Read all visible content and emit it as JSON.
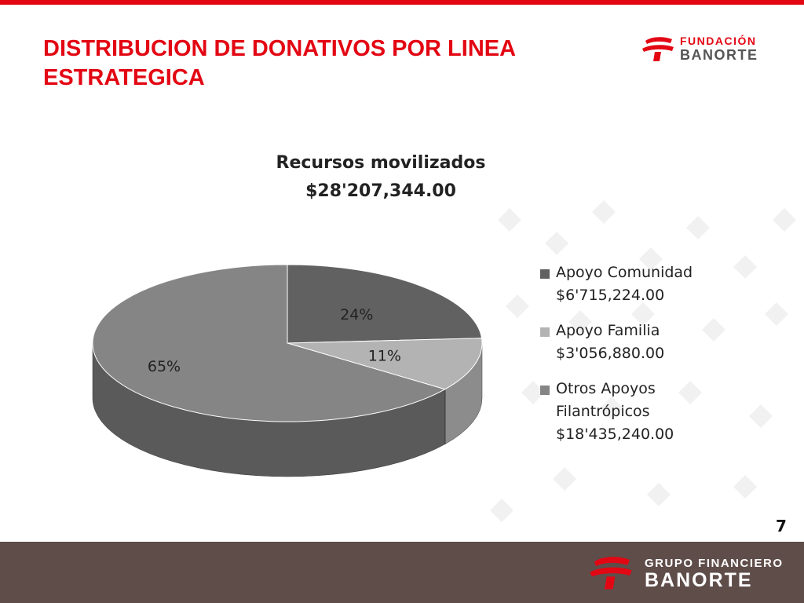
{
  "slide": {
    "title": "DISTRIBUCION DE DONATIVOS POR LINEA ESTRATEGICA",
    "page_number": "7",
    "accent_color": "#e30613",
    "footer_color": "#5f4d4a"
  },
  "top_logo": {
    "line1": "FUNDACIÓN",
    "line2": "BANORTE",
    "icon": "banorte-logo-icon"
  },
  "footer_logo": {
    "line1": "GRUPO FINANCIERO",
    "line2": "BANORTE",
    "icon": "banorte-logo-icon"
  },
  "chart_data": {
    "type": "pie",
    "title": "Recursos movilizados",
    "subtitle": "$28'207,344.00",
    "legend_position": "right",
    "slices": [
      {
        "name": "Apoyo Comunidad",
        "amount": "$6'715,224.00",
        "value": 24,
        "label": "24%",
        "color": "#616161",
        "side_color": "#474747"
      },
      {
        "name": "Apoyo Familia",
        "amount": "$3'056,880.00",
        "value": 11,
        "label": "11%",
        "color": "#b3b3b3",
        "side_color": "#8c8c8c"
      },
      {
        "name": "Otros Apoyos Filantrópicos",
        "amount": "$18'435,240.00",
        "value": 65,
        "label": "65%",
        "color": "#858585",
        "side_color": "#5a5a5a"
      }
    ],
    "legend": [
      {
        "lines": [
          "Apoyo Comunidad",
          "$6'715,224.00"
        ]
      },
      {
        "lines": [
          "Apoyo Familia",
          "$3'056,880.00"
        ]
      },
      {
        "lines": [
          "Otros Apoyos",
          "Filantrópicos",
          "$18'435,240.00"
        ]
      }
    ]
  }
}
